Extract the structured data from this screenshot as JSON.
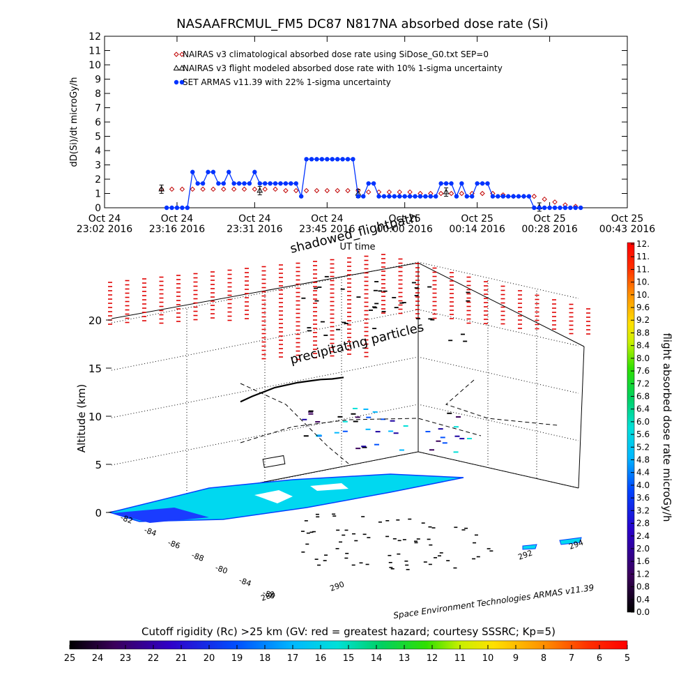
{
  "chart_data": [
    {
      "type": "line",
      "title": "NASAAFRCMUL_FM5 DC87 N817NA absorbed dose rate (Si)",
      "ylabel": "dD(Si)/dt microGy/h",
      "xlabel": "UT time",
      "ylim": [
        0,
        12
      ],
      "yticks": [
        "0",
        "1",
        "2",
        "3",
        "4",
        "5",
        "6",
        "7",
        "8",
        "9",
        "10",
        "11",
        "12"
      ],
      "xlim": [
        0,
        101
      ],
      "xticks": [
        {
          "l1": "Oct 24",
          "l2": "23:02  2016",
          "t": 0
        },
        {
          "l1": "Oct 24",
          "l2": "23:16  2016",
          "t": 14
        },
        {
          "l1": "Oct 24",
          "l2": "23:31  2016",
          "t": 29
        },
        {
          "l1": "Oct 24",
          "l2": "23:45  2016",
          "t": 43
        },
        {
          "l1": "Oct 25",
          "l2": "00:00  2016",
          "t": 58
        },
        {
          "l1": "Oct 25",
          "l2": "00:14  2016",
          "t": 72
        },
        {
          "l1": "Oct 25",
          "l2": "00:28  2016",
          "t": 86
        },
        {
          "l1": "Oct 25",
          "l2": "00:43  2016",
          "t": 101
        }
      ],
      "legend_position": "top",
      "series": [
        {
          "name": "NAIRAS v3 climatological absorbed dose rate using SiDose_G0.txt SEP=0",
          "color": "#c00000",
          "marker": "diamond",
          "x": [
            11,
            13,
            15,
            17,
            19,
            21,
            23,
            25,
            27,
            29,
            31,
            33,
            35,
            37,
            39,
            41,
            43,
            45,
            47,
            49,
            51,
            53,
            55,
            57,
            59,
            61,
            63,
            65,
            67,
            69,
            71,
            73,
            75,
            77,
            79,
            81,
            83,
            85,
            87,
            89,
            91
          ],
          "values": [
            1.3,
            1.3,
            1.3,
            1.3,
            1.3,
            1.3,
            1.3,
            1.3,
            1.3,
            1.3,
            1.3,
            1.3,
            1.2,
            1.2,
            1.2,
            1.2,
            1.2,
            1.2,
            1.2,
            1.2,
            1.1,
            1.1,
            1.1,
            1.1,
            1.1,
            1.0,
            1.0,
            1.0,
            1.0,
            1.0,
            1.0,
            1.0,
            1.0,
            0.9,
            0.8,
            0.8,
            0.8,
            0.6,
            0.4,
            0.2,
            0.1
          ]
        },
        {
          "name": "NAIRAS v3 flight modeled absorbed dose rate with 10% 1-sigma uncertainty",
          "color": "#000000",
          "marker": "triangle",
          "x": [
            11,
            30,
            49,
            66,
            84
          ],
          "values": [
            1.3,
            1.2,
            1.0,
            1.1,
            0.05
          ]
        },
        {
          "name": "SET ARMAS v11.39 with 22% 1-sigma uncertainty",
          "color": "#0033ff",
          "marker": "circle",
          "x": [
            12,
            13,
            14,
            15,
            16,
            17,
            18,
            19,
            20,
            21,
            22,
            23,
            24,
            25,
            26,
            27,
            28,
            29,
            30,
            31,
            32,
            33,
            34,
            35,
            36,
            37,
            38,
            39,
            40,
            41,
            42,
            43,
            44,
            45,
            46,
            47,
            48,
            49,
            50,
            51,
            52,
            53,
            54,
            55,
            56,
            57,
            58,
            59,
            60,
            61,
            62,
            63,
            64,
            65,
            66,
            67,
            68,
            69,
            70,
            71,
            72,
            73,
            74,
            75,
            76,
            77,
            78,
            79,
            80,
            81,
            82,
            83,
            84,
            85,
            86,
            87,
            88,
            89,
            90,
            91,
            92
          ],
          "values": [
            0,
            0,
            0,
            0,
            0,
            2.5,
            1.7,
            1.7,
            2.5,
            2.5,
            1.7,
            1.7,
            2.5,
            1.7,
            1.7,
            1.7,
            1.7,
            2.5,
            1.7,
            1.7,
            1.7,
            1.7,
            1.7,
            1.7,
            1.7,
            1.7,
            0.8,
            3.4,
            3.4,
            3.4,
            3.4,
            3.4,
            3.4,
            3.4,
            3.4,
            3.4,
            3.4,
            0.8,
            0.8,
            1.7,
            1.7,
            0.8,
            0.8,
            0.8,
            0.8,
            0.8,
            0.8,
            0.8,
            0.8,
            0.8,
            0.8,
            0.8,
            0.8,
            1.7,
            1.7,
            1.7,
            0.8,
            1.7,
            0.8,
            0.8,
            1.7,
            1.7,
            1.7,
            0.8,
            0.8,
            0.8,
            0.8,
            0.8,
            0.8,
            0.8,
            0.8,
            0,
            0,
            0,
            0,
            0,
            0,
            0,
            0,
            0,
            0
          ]
        }
      ]
    },
    {
      "type": "scatter",
      "subtype": "3d-flight-path",
      "zlabel": "Altitude (km)",
      "zlim": [
        0,
        20
      ],
      "zticks": [
        "0",
        "5",
        "10",
        "15",
        "20"
      ],
      "lat_ticks": [
        "-82",
        "-84",
        "-86",
        "-88",
        "-80",
        "-84",
        "-86"
      ],
      "lon_ticks": [
        "288",
        "290",
        "292",
        "294"
      ],
      "annotations": [
        "shadowed_flightpath",
        "precipitating particles"
      ],
      "caption": "Space Environment Technologies ARMAS v11.39",
      "flight_path_lon": [
        283.5,
        284.5,
        285.5,
        286.5,
        287.5,
        288.5,
        289.5,
        290.5,
        291.5,
        292.5
      ],
      "flight_path_alt": [
        11.5,
        12.0,
        12.4,
        12.8,
        13.0,
        13.2,
        13.3,
        13.4,
        13.4,
        13.5
      ]
    },
    {
      "type": "heatmap",
      "subtype": "colorbar",
      "label": "flight absorbed dose rate microGy/h",
      "ticks": [
        "0.0",
        "0.4",
        "0.8",
        "1.2",
        "1.6",
        "2.0",
        "2.4",
        "2.8",
        "3.2",
        "3.6",
        "4.0",
        "4.4",
        "4.8",
        "5.2",
        "5.6",
        "6.0",
        "6.4",
        "6.8",
        "7.2",
        "7.6",
        "8.0",
        "8.4",
        "8.8",
        "9.2",
        "9.6",
        "10.",
        "10.",
        "11.",
        "11.",
        "12."
      ],
      "range": [
        0,
        12
      ]
    },
    {
      "type": "heatmap",
      "subtype": "colorbar",
      "label": "Cutoff rigidity (Rc) >25 km (GV: red = greatest hazard; courtesy SSSRC; Kp=5)",
      "ticks": [
        "25",
        "24",
        "23",
        "22",
        "21",
        "20",
        "19",
        "18",
        "17",
        "16",
        "15",
        "14",
        "13",
        "12",
        "11",
        "10",
        "9",
        "8",
        "7",
        "6",
        "5"
      ],
      "range": [
        25,
        5
      ]
    }
  ]
}
